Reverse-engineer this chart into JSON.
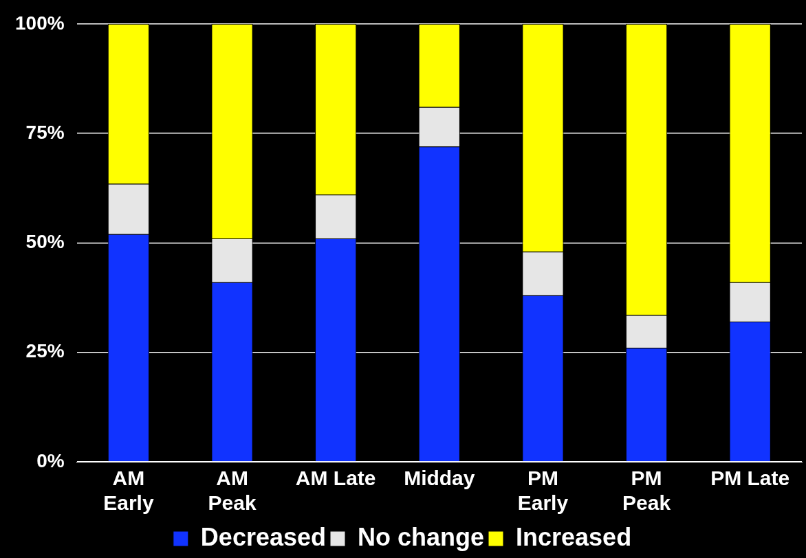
{
  "chart_data": {
    "type": "bar",
    "stacked": true,
    "categories": [
      "AM Early",
      "AM Peak",
      "AM Late",
      "Midday",
      "PM Early",
      "PM Peak",
      "PM Late"
    ],
    "series": [
      {
        "name": "Decreased",
        "color": "#1133ff",
        "values": [
          52,
          41,
          51,
          72,
          38,
          26,
          32
        ]
      },
      {
        "name": "No change",
        "color": "#e6e6e6",
        "values": [
          11.5,
          10,
          10,
          9,
          10,
          7.5,
          9
        ]
      },
      {
        "name": "Increased",
        "color": "#ffff00",
        "values": [
          36.5,
          49,
          39,
          19,
          52,
          66.5,
          59
        ]
      }
    ],
    "ylim": [
      0,
      100
    ],
    "yticks": [
      {
        "value": 0,
        "label": "0%"
      },
      {
        "value": 25,
        "label": "25%"
      },
      {
        "value": 50,
        "label": "50%"
      },
      {
        "value": 75,
        "label": "75%"
      },
      {
        "value": 100,
        "label": "100%"
      }
    ],
    "grid": "y",
    "legend": "bottom"
  }
}
